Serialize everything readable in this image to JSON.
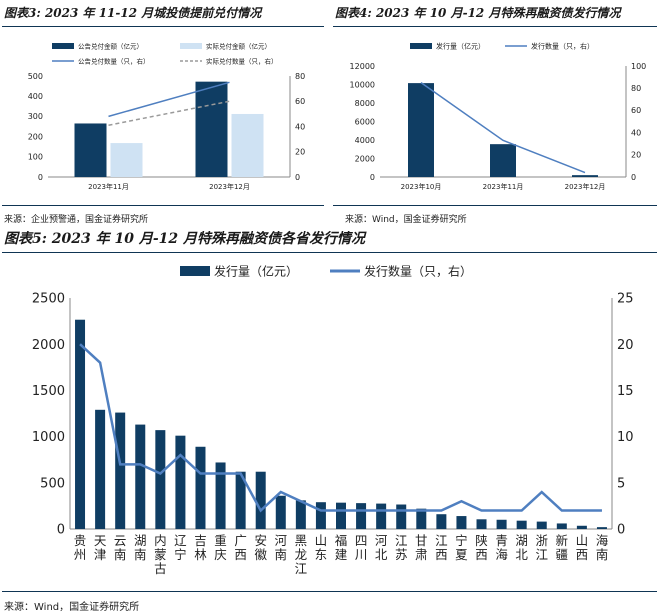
{
  "colors": {
    "navy": "#0f3d63",
    "light_blue": "#cfe2f3",
    "line_blue": "#4f7fc0",
    "gray_dash": "#9a9a9a"
  },
  "fig3": {
    "title": "图表3: 2023 年 11-12 月城投债提前兑付情况",
    "source": "来源：企业预警通，国金证券研究所"
  },
  "fig4": {
    "title": "图表4: 2023 年 10 月-12 月特殊再融资债发行情况",
    "source": "来源：Wind，国金证券研究所"
  },
  "fig5": {
    "title": "图表5: 2023 年 10 月-12 月特殊再融资债各省发行情况",
    "source": "来源：Wind，国金证券研究所"
  },
  "chart_data": [
    {
      "id": "fig3",
      "type": "bar",
      "categories": [
        "2023年11月",
        "2023年12月"
      ],
      "series": [
        {
          "name": "公告兑付金额（亿元）",
          "kind": "bar",
          "axis": "left",
          "values": [
            265,
            472
          ],
          "color": "#0f3d63"
        },
        {
          "name": "实际兑付金额（亿元）",
          "kind": "bar",
          "axis": "left",
          "values": [
            168,
            312
          ],
          "color": "#cfe2f3"
        },
        {
          "name": "公告兑付数量（只，右）",
          "kind": "line",
          "axis": "right",
          "values": [
            48,
            75
          ],
          "color": "#4f7fc0"
        },
        {
          "name": "实际兑付数量（只，右）",
          "kind": "line-dashed",
          "axis": "right",
          "values": [
            41,
            60
          ],
          "color": "#9a9a9a"
        }
      ],
      "ylim": [
        0,
        500
      ],
      "yticks": [
        0,
        100,
        200,
        300,
        400,
        500
      ],
      "y2lim": [
        0,
        80
      ],
      "y2ticks": [
        0,
        20,
        40,
        60,
        80
      ],
      "legend": "top"
    },
    {
      "id": "fig4",
      "type": "bar",
      "categories": [
        "2023年10月",
        "2023年11月",
        "2023年12月"
      ],
      "series": [
        {
          "name": "发行量（亿元）",
          "kind": "bar",
          "axis": "left",
          "values": [
            10150,
            3550,
            200
          ],
          "color": "#0f3d63"
        },
        {
          "name": "发行数量（只，右）",
          "kind": "line",
          "axis": "right",
          "values": [
            85,
            33,
            4
          ],
          "color": "#4f7fc0"
        }
      ],
      "ylim": [
        0,
        12000
      ],
      "yticks": [
        0,
        2000,
        4000,
        6000,
        8000,
        10000,
        12000
      ],
      "y2lim": [
        0,
        100
      ],
      "y2ticks": [
        0,
        20,
        40,
        60,
        80,
        100
      ],
      "legend": "top"
    },
    {
      "id": "fig5",
      "type": "bar",
      "categories": [
        "贵州",
        "天津",
        "云南",
        "湖南",
        "内蒙古",
        "辽宁",
        "吉林",
        "重庆",
        "广西",
        "安徽",
        "河南",
        "黑龙江",
        "山东",
        "福建",
        "四川",
        "河北",
        "江苏",
        "甘肃",
        "江西",
        "宁夏",
        "陕西",
        "青海",
        "湖北",
        "浙江",
        "新疆",
        "山西",
        "海南"
      ],
      "series": [
        {
          "name": "发行量（亿元）",
          "kind": "bar",
          "axis": "left",
          "values": [
            2265,
            1290,
            1260,
            1130,
            1070,
            1010,
            890,
            720,
            620,
            620,
            360,
            310,
            290,
            285,
            280,
            275,
            265,
            220,
            160,
            140,
            105,
            100,
            90,
            80,
            60,
            35,
            20
          ],
          "color": "#0f3d63"
        },
        {
          "name": "发行数量（只，右）",
          "kind": "line",
          "axis": "right",
          "values": [
            20,
            18,
            7,
            7,
            6,
            8,
            6,
            6,
            6,
            2,
            4,
            3,
            2,
            2,
            2,
            2,
            2,
            2,
            2,
            3,
            2,
            2,
            2,
            4,
            2,
            2,
            2
          ],
          "color": "#4f7fc0"
        }
      ],
      "ylim": [
        0,
        2500
      ],
      "yticks": [
        0,
        500,
        1000,
        1500,
        2000,
        2500
      ],
      "y2lim": [
        0,
        25
      ],
      "y2ticks": [
        0,
        5,
        10,
        15,
        20,
        25
      ],
      "legend": "top"
    }
  ]
}
